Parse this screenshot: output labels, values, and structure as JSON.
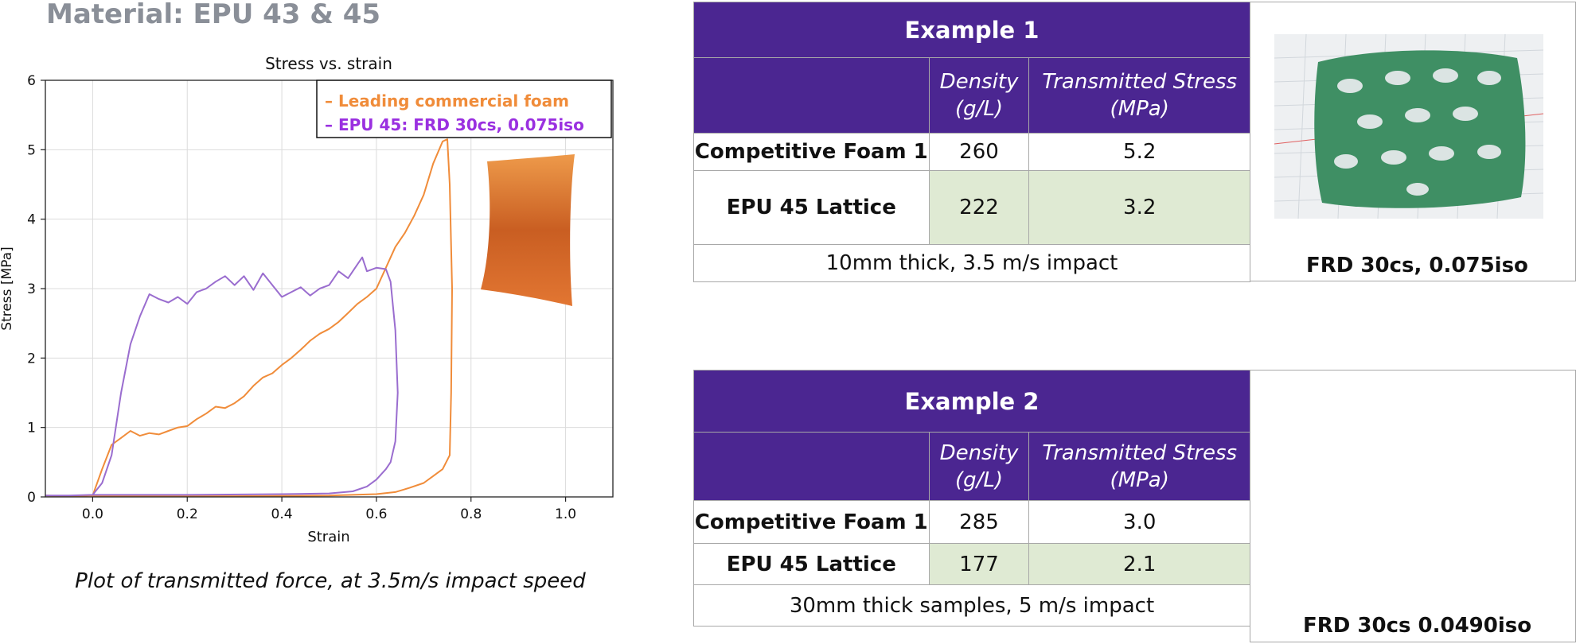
{
  "page_title": "Material: EPU 43 & 45",
  "chart_caption": "Plot of transmitted force, at 3.5m/s impact speed",
  "colors": {
    "foam": "#f08c3a",
    "epu": "#9a6dcf",
    "header_purple": "#4b2691",
    "green_cell": "#dfead3",
    "lattice_green": "#3f8f64",
    "title_gray": "#8a8f98"
  },
  "chart_data": {
    "type": "line",
    "title": "Stress vs. strain",
    "xlabel": "Strain",
    "ylabel": "Stress [MPa]",
    "xlim": [
      -0.1,
      1.1
    ],
    "ylim": [
      0,
      6
    ],
    "xticks": [
      "0.0",
      "0.2",
      "0.4",
      "0.6",
      "0.8",
      "1.0"
    ],
    "yticks": [
      "0",
      "1",
      "2",
      "3",
      "4",
      "5",
      "6"
    ],
    "grid": true,
    "legend_position": "top-right",
    "series": [
      {
        "name": "Leading commercial foam",
        "color": "#f08c3a",
        "points": [
          [
            -0.1,
            0.02
          ],
          [
            -0.05,
            0.01
          ],
          [
            0.0,
            0.02
          ],
          [
            0.02,
            0.4
          ],
          [
            0.04,
            0.75
          ],
          [
            0.06,
            0.85
          ],
          [
            0.08,
            0.95
          ],
          [
            0.1,
            0.88
          ],
          [
            0.12,
            0.92
          ],
          [
            0.14,
            0.9
          ],
          [
            0.16,
            0.95
          ],
          [
            0.18,
            1.0
          ],
          [
            0.2,
            1.02
          ],
          [
            0.22,
            1.12
          ],
          [
            0.24,
            1.2
          ],
          [
            0.26,
            1.3
          ],
          [
            0.28,
            1.28
          ],
          [
            0.3,
            1.35
          ],
          [
            0.32,
            1.45
          ],
          [
            0.34,
            1.6
          ],
          [
            0.36,
            1.72
          ],
          [
            0.38,
            1.78
          ],
          [
            0.4,
            1.9
          ],
          [
            0.42,
            2.0
          ],
          [
            0.44,
            2.12
          ],
          [
            0.46,
            2.25
          ],
          [
            0.48,
            2.35
          ],
          [
            0.5,
            2.42
          ],
          [
            0.52,
            2.52
          ],
          [
            0.54,
            2.65
          ],
          [
            0.56,
            2.78
          ],
          [
            0.58,
            2.88
          ],
          [
            0.6,
            3.0
          ],
          [
            0.62,
            3.3
          ],
          [
            0.64,
            3.6
          ],
          [
            0.66,
            3.8
          ],
          [
            0.68,
            4.05
          ],
          [
            0.7,
            4.35
          ],
          [
            0.72,
            4.8
          ],
          [
            0.74,
            5.12
          ],
          [
            0.75,
            5.15
          ],
          [
            0.755,
            4.5
          ],
          [
            0.76,
            3.0
          ],
          [
            0.758,
            1.5
          ],
          [
            0.755,
            0.6
          ],
          [
            0.74,
            0.4
          ],
          [
            0.72,
            0.3
          ],
          [
            0.7,
            0.2
          ],
          [
            0.67,
            0.13
          ],
          [
            0.64,
            0.07
          ],
          [
            0.6,
            0.04
          ],
          [
            0.5,
            0.02
          ],
          [
            0.3,
            0.01
          ],
          [
            0.0,
            0.01
          ]
        ]
      },
      {
        "name": "EPU 45: FRD 30cs, 0.075iso",
        "color": "#9a6dcf",
        "points": [
          [
            -0.1,
            0.02
          ],
          [
            -0.05,
            0.02
          ],
          [
            0.0,
            0.03
          ],
          [
            0.02,
            0.2
          ],
          [
            0.04,
            0.6
          ],
          [
            0.06,
            1.5
          ],
          [
            0.08,
            2.2
          ],
          [
            0.1,
            2.6
          ],
          [
            0.12,
            2.92
          ],
          [
            0.14,
            2.85
          ],
          [
            0.16,
            2.8
          ],
          [
            0.18,
            2.88
          ],
          [
            0.2,
            2.78
          ],
          [
            0.22,
            2.95
          ],
          [
            0.24,
            3.0
          ],
          [
            0.26,
            3.1
          ],
          [
            0.28,
            3.18
          ],
          [
            0.3,
            3.05
          ],
          [
            0.32,
            3.18
          ],
          [
            0.34,
            2.98
          ],
          [
            0.36,
            3.22
          ],
          [
            0.38,
            3.05
          ],
          [
            0.4,
            2.88
          ],
          [
            0.42,
            2.95
          ],
          [
            0.44,
            3.02
          ],
          [
            0.46,
            2.9
          ],
          [
            0.48,
            3.0
          ],
          [
            0.5,
            3.05
          ],
          [
            0.52,
            3.25
          ],
          [
            0.54,
            3.15
          ],
          [
            0.56,
            3.35
          ],
          [
            0.57,
            3.45
          ],
          [
            0.58,
            3.25
          ],
          [
            0.6,
            3.3
          ],
          [
            0.62,
            3.28
          ],
          [
            0.63,
            3.1
          ],
          [
            0.64,
            2.4
          ],
          [
            0.645,
            1.5
          ],
          [
            0.64,
            0.8
          ],
          [
            0.63,
            0.5
          ],
          [
            0.62,
            0.4
          ],
          [
            0.6,
            0.25
          ],
          [
            0.58,
            0.15
          ],
          [
            0.55,
            0.08
          ],
          [
            0.5,
            0.05
          ],
          [
            0.4,
            0.04
          ],
          [
            0.2,
            0.03
          ],
          [
            0.0,
            0.03
          ]
        ]
      }
    ]
  },
  "example1": {
    "title": "Example 1",
    "col_density": [
      "Density",
      "(g/L)"
    ],
    "col_stress": [
      "Transmitted Stress",
      "(MPa)"
    ],
    "rows": [
      {
        "label": "Competitive Foam 1",
        "density": "260",
        "stress": "5.2"
      },
      {
        "label": "EPU 45 Lattice",
        "density": "222",
        "stress": "3.2"
      }
    ],
    "note": "10mm thick, 3.5 m/s impact",
    "image_caption": "FRD 30cs, 0.075iso"
  },
  "example2": {
    "title": "Example 2",
    "col_density": [
      "Density",
      "(g/L)"
    ],
    "col_stress": [
      "Transmitted Stress",
      "(MPa)"
    ],
    "rows": [
      {
        "label": "Competitive Foam 1",
        "density": "285",
        "stress": "3.0"
      },
      {
        "label": "EPU 45 Lattice",
        "density": "177",
        "stress": "2.1"
      }
    ],
    "note": "30mm thick samples, 5 m/s impact",
    "image_caption": "FRD 30cs 0.0490iso"
  }
}
